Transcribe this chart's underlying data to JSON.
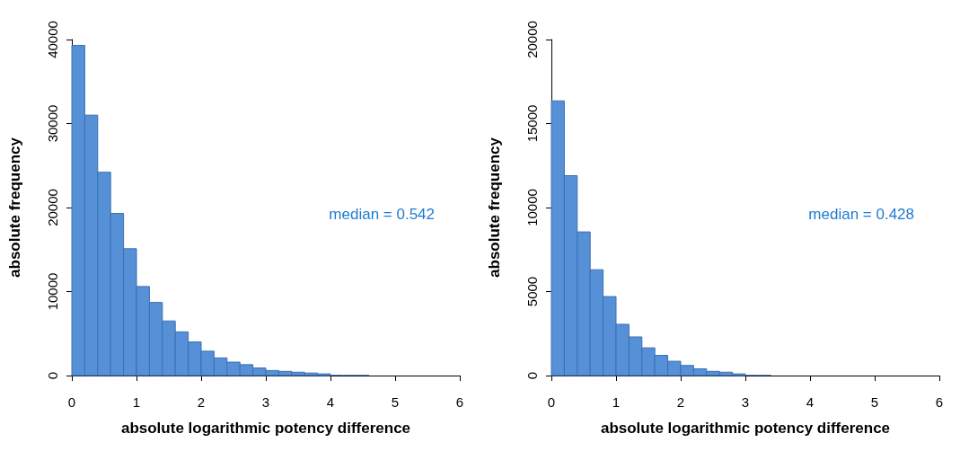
{
  "chart_data": [
    {
      "type": "histogram",
      "xlabel": "absolute logarithmic potency difference",
      "ylabel": "absolute frequency",
      "annotations": [
        "median = 0.542"
      ],
      "color": "#5690d6",
      "bins": [
        0,
        0.2,
        0.4,
        0.6,
        0.8,
        1,
        1.2,
        1.4,
        1.6,
        1.8,
        2,
        2.2,
        2.4,
        2.6,
        2.8,
        3,
        3.2,
        3.4,
        3.6,
        3.8,
        4,
        4.2,
        4.4,
        4.6,
        4.8,
        5,
        5.2,
        5.4,
        5.6,
        5.8,
        6
      ],
      "values": [
        39300,
        31000,
        24200,
        19300,
        15100,
        10600,
        8700,
        6500,
        5200,
        4000,
        2900,
        2100,
        1600,
        1300,
        900,
        600,
        500,
        400,
        300,
        200,
        100,
        100,
        100,
        0,
        0,
        0,
        0,
        0,
        0,
        0
      ],
      "xlim": [
        0,
        6
      ],
      "xticks": [
        0,
        1,
        2,
        3,
        4,
        5,
        6
      ],
      "ylim": [
        0,
        40000
      ],
      "yticks": [
        0,
        10000,
        20000,
        30000,
        40000
      ],
      "grid": false
    },
    {
      "type": "histogram",
      "xlabel": "absolute logarithmic potency difference",
      "ylabel": "absolute frequency",
      "annotations": [
        "median = 0.428"
      ],
      "color": "#5690d6",
      "bins": [
        0,
        0.2,
        0.4,
        0.6,
        0.8,
        1,
        1.2,
        1.4,
        1.6,
        1.8,
        2,
        2.2,
        2.4,
        2.6,
        2.8,
        3,
        3.2,
        3.4,
        3.6,
        3.8,
        4,
        4.2,
        4.4,
        4.6,
        4.8,
        5,
        5.2,
        5.4,
        5.6,
        5.8,
        6
      ],
      "values": [
        16350,
        11900,
        8550,
        6300,
        4700,
        3050,
        2300,
        1650,
        1200,
        850,
        600,
        400,
        250,
        200,
        100,
        50,
        50,
        0,
        0,
        0,
        0,
        0,
        0,
        0,
        0,
        0,
        0,
        0,
        0,
        0
      ],
      "xlim": [
        0,
        6
      ],
      "xticks": [
        0,
        1,
        2,
        3,
        4,
        5,
        6
      ],
      "ylim": [
        0,
        20000
      ],
      "yticks": [
        0,
        5000,
        10000,
        15000,
        20000
      ],
      "grid": false
    }
  ]
}
